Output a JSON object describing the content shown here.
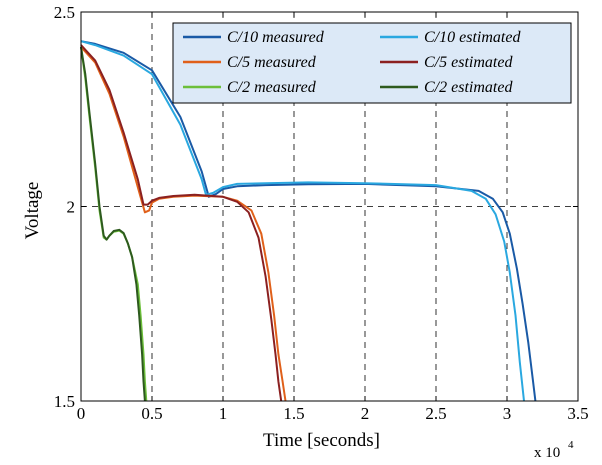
{
  "chart_data": {
    "type": "line",
    "xlabel": "Time [seconds]",
    "ylabel": "Voltage",
    "x_multiplier": {
      "base": "x 10",
      "exponent": "4"
    },
    "xlim": [
      0,
      3.5
    ],
    "ylim": [
      1.5,
      2.5
    ],
    "xticks": [
      0,
      0.5,
      1,
      1.5,
      2,
      2.5,
      3,
      3.5
    ],
    "xtick_labels": [
      "0",
      "0.5",
      "1",
      "1.5",
      "2",
      "2.5",
      "3",
      "3.5"
    ],
    "yticks": [
      1.5,
      2,
      2.5
    ],
    "ytick_labels": [
      "1.5",
      "2",
      "2.5"
    ],
    "grid": true,
    "legend_position": "top-right",
    "series": [
      {
        "name": "C/10 measured",
        "color": "#1a5aa6",
        "x": [
          0,
          0.1,
          0.3,
          0.5,
          0.7,
          0.85,
          0.9,
          0.95,
          1.0,
          1.1,
          1.3,
          1.6,
          2.0,
          2.5,
          2.8,
          2.9,
          2.97,
          3.02,
          3.07,
          3.11,
          3.15,
          3.18,
          3.2
        ],
        "y": [
          2.425,
          2.418,
          2.395,
          2.35,
          2.23,
          2.09,
          2.025,
          2.032,
          2.045,
          2.052,
          2.055,
          2.057,
          2.058,
          2.052,
          2.04,
          2.02,
          1.985,
          1.93,
          1.84,
          1.75,
          1.65,
          1.56,
          1.5
        ]
      },
      {
        "name": "C/10 estimated",
        "color": "#2aa8e0",
        "x": [
          0,
          0.1,
          0.3,
          0.5,
          0.7,
          0.85,
          0.88,
          0.93,
          1.0,
          1.1,
          1.3,
          1.6,
          2.0,
          2.5,
          2.75,
          2.85,
          2.92,
          2.98,
          3.02,
          3.06,
          3.09,
          3.12
        ],
        "y": [
          2.425,
          2.415,
          2.388,
          2.34,
          2.21,
          2.07,
          2.03,
          2.035,
          2.05,
          2.058,
          2.06,
          2.062,
          2.06,
          2.055,
          2.04,
          2.02,
          1.98,
          1.91,
          1.83,
          1.72,
          1.6,
          1.5
        ]
      },
      {
        "name": "C/5 measured",
        "color": "#e0601a",
        "x": [
          0,
          0.1,
          0.2,
          0.3,
          0.4,
          0.45,
          0.48,
          0.5,
          0.55,
          0.65,
          0.8,
          1.0,
          1.1,
          1.2,
          1.27,
          1.32,
          1.36,
          1.39,
          1.42,
          1.44
        ],
        "y": [
          2.41,
          2.37,
          2.29,
          2.18,
          2.05,
          1.985,
          1.99,
          2.01,
          2.02,
          2.025,
          2.028,
          2.025,
          2.015,
          1.99,
          1.93,
          1.83,
          1.72,
          1.62,
          1.55,
          1.5
        ]
      },
      {
        "name": "C/5 estimated",
        "color": "#8b2020",
        "x": [
          0,
          0.1,
          0.2,
          0.3,
          0.4,
          0.44,
          0.47,
          0.5,
          0.55,
          0.65,
          0.8,
          1.0,
          1.1,
          1.18,
          1.25,
          1.3,
          1.34,
          1.37,
          1.39,
          1.41
        ],
        "y": [
          2.415,
          2.375,
          2.3,
          2.19,
          2.07,
          2.005,
          2.005,
          2.015,
          2.022,
          2.027,
          2.03,
          2.025,
          2.012,
          1.985,
          1.92,
          1.82,
          1.71,
          1.62,
          1.55,
          1.5
        ]
      },
      {
        "name": "C/2 measured",
        "color": "#6cbf3a",
        "x": [
          0,
          0.03,
          0.06,
          0.1,
          0.13,
          0.16,
          0.18,
          0.2,
          0.23,
          0.27,
          0.3,
          0.33,
          0.36,
          0.4,
          0.42,
          0.44,
          0.45,
          0.46
        ],
        "y": [
          2.41,
          2.33,
          2.23,
          2.1,
          1.99,
          1.92,
          1.915,
          1.925,
          1.935,
          1.938,
          1.93,
          1.905,
          1.87,
          1.8,
          1.72,
          1.62,
          1.55,
          1.5
        ]
      },
      {
        "name": "C/2 estimated",
        "color": "#2d5a1e",
        "x": [
          0,
          0.03,
          0.06,
          0.1,
          0.13,
          0.16,
          0.18,
          0.2,
          0.23,
          0.27,
          0.3,
          0.33,
          0.36,
          0.39,
          0.41,
          0.43,
          0.44,
          0.45
        ],
        "y": [
          2.41,
          2.34,
          2.24,
          2.11,
          2.0,
          1.925,
          1.915,
          1.925,
          1.937,
          1.94,
          1.932,
          1.905,
          1.87,
          1.8,
          1.72,
          1.62,
          1.55,
          1.5
        ]
      }
    ]
  }
}
